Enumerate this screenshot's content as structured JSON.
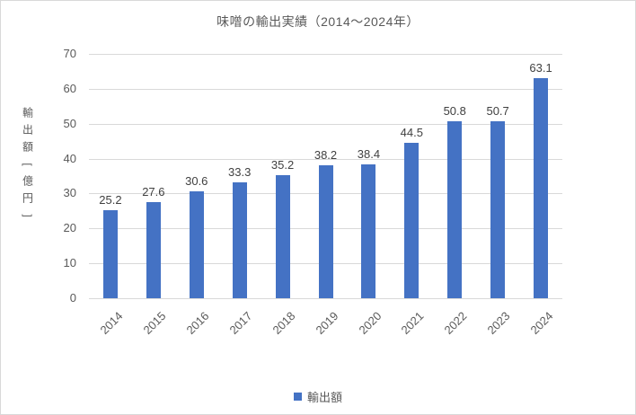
{
  "chart_data": {
    "type": "bar",
    "title": "味噌の輸出実績（2014～2024年）",
    "ylabel": "輸出額[億円]",
    "xlabel": "",
    "categories": [
      "2014",
      "2015",
      "2016",
      "2017",
      "2018",
      "2019",
      "2020",
      "2021",
      "2022",
      "2023",
      "2024"
    ],
    "series": [
      {
        "name": "輸出額",
        "values": [
          25.2,
          27.6,
          30.6,
          33.3,
          35.2,
          38.2,
          38.4,
          44.5,
          50.8,
          50.7,
          63.1
        ]
      }
    ],
    "ylim": [
      0,
      70
    ],
    "yticks": [
      0,
      10,
      20,
      30,
      40,
      50,
      60,
      70
    ],
    "grid": true,
    "data_labels": true,
    "legend_position": "bottom",
    "colors": {
      "bar": "#4472C4",
      "gridline": "#D9D9D9",
      "axis_text": "#595959",
      "value_label_text": "#404040",
      "title_text": "#595959",
      "background": "#FFFFFF",
      "border": "#D9D9D9"
    }
  }
}
